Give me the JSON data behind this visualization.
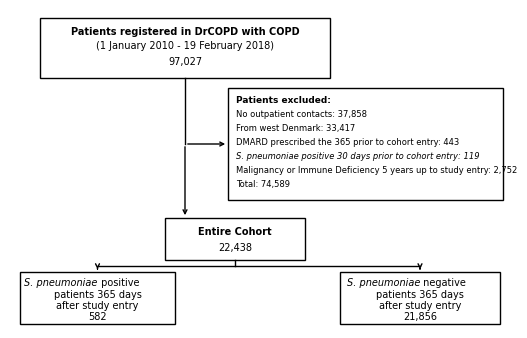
{
  "top_box": {
    "line1": "Patients registered in DrCOPD with COPD",
    "line2": "(1 January 2010 - 19 February 2018)",
    "number": "97,027"
  },
  "exclude_box": {
    "title": "Patients excluded:",
    "lines": [
      "No outpatient contacts: 37,858",
      "From west Denmark: 33,417",
      "DMARD prescribed the 365 prior to cohort entry: 443",
      "S. pneumoniae positive 30 days prior to cohort entry: 119",
      "Malignancy or Immune Deficiency 5 years up to study entry: 2,752",
      "Total: 74,589"
    ]
  },
  "middle_box": {
    "line1": "Entire Cohort",
    "number": "22,438"
  },
  "left_box": {
    "italic_part": "S. pneumoniae",
    "normal_part": " positive",
    "line2": "patients 365 days",
    "line3": "after study entry",
    "number": "582"
  },
  "right_box": {
    "italic_part": "S. pneumoniae",
    "normal_part": " negative",
    "line2": "patients 365 days",
    "line3": "after study entry",
    "number": "21,856"
  },
  "bg_color": "#ffffff",
  "box_edge_color": "#000000",
  "arrow_color": "#000000"
}
